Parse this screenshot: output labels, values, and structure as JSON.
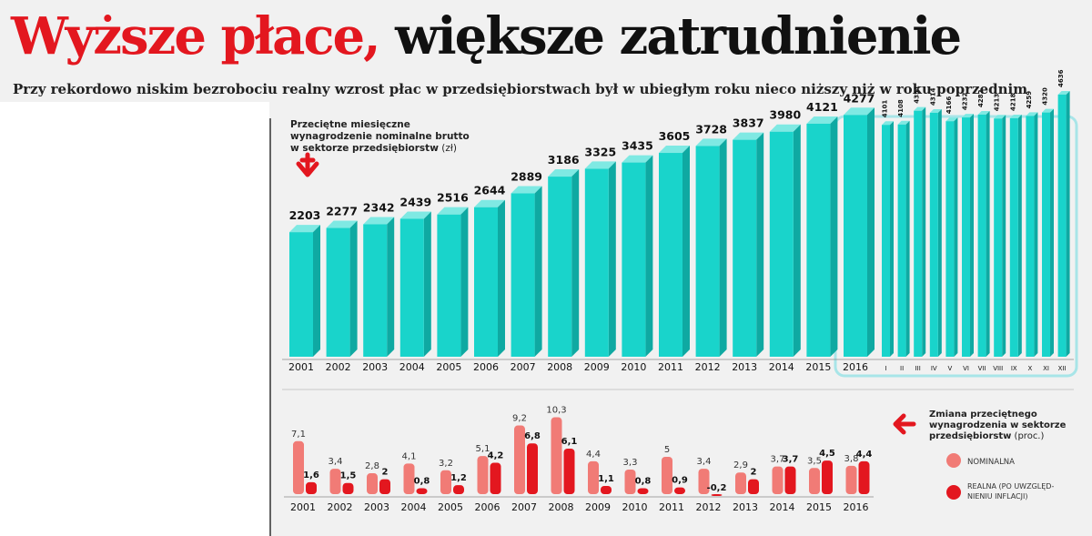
{
  "header": {
    "title_red": "Wyższe płace,",
    "title_black": "większe zatrudnienie",
    "subtitle": "Przy rekordowo niskim bezrobociu realny wzrost płac w przedsiębiorstwach był w ubiegłym roku nieco niższy niż w roku poprzednim"
  },
  "colors": {
    "teal": "#19d4cb",
    "teal_top": "#7fe9e3",
    "teal_side": "#0fa9a2",
    "nominal": "#f17b76",
    "real": "#e3171f",
    "accent": "#e3171f",
    "frame": "#a8e5e8"
  },
  "chart_data": [
    {
      "type": "bar",
      "title_lines": [
        "Przeciętne miesięczne",
        "wynagrodzenie nominalne brutto",
        "w sektorze przedsiębiorstw"
      ],
      "title_unit": "(zł)",
      "categories": [
        "2001",
        "2002",
        "2003",
        "2004",
        "2005",
        "2006",
        "2007",
        "2008",
        "2009",
        "2010",
        "2011",
        "2012",
        "2013",
        "2014",
        "2015",
        "2016"
      ],
      "values": [
        2203,
        2277,
        2342,
        2439,
        2516,
        2644,
        2889,
        3186,
        3325,
        3435,
        3605,
        3728,
        3837,
        3980,
        4121,
        4277
      ],
      "monthly": {
        "categories": [
          "I",
          "II",
          "III",
          "IV",
          "V",
          "VI",
          "VII",
          "VIII",
          "IX",
          "X",
          "XI",
          "XII"
        ],
        "values": [
          4101,
          4108,
          4351,
          4314,
          4166,
          4232,
          4282,
          4213,
          4218,
          4259,
          4320,
          4636
        ]
      },
      "ylim": [
        0,
        4700
      ]
    },
    {
      "type": "bar",
      "title_lines": [
        "Zmiana przeciętnego",
        "wynagrodzenia w sektorze",
        "przedsiębiorstw"
      ],
      "title_unit": "(proc.)",
      "categories": [
        "2001",
        "2002",
        "2003",
        "2004",
        "2005",
        "2006",
        "2007",
        "2008",
        "2009",
        "2010",
        "2011",
        "2012",
        "2013",
        "2014",
        "2015",
        "2016"
      ],
      "series": [
        {
          "name": "NOMINALNA",
          "values": [
            7.1,
            3.4,
            2.8,
            4.1,
            3.2,
            5.1,
            9.2,
            10.3,
            4.4,
            3.3,
            5,
            3.4,
            2.9,
            3.7,
            3.5,
            3.8
          ],
          "labels": [
            "7,1",
            "3,4",
            "2,8",
            "4,1",
            "3,2",
            "5,1",
            "9,2",
            "10,3",
            "4,4",
            "3,3",
            "5",
            "3,4",
            "2,9",
            "3,7",
            "3,5",
            "3,8"
          ]
        },
        {
          "name_lines": [
            "REALNA (PO UWZGLĘD-",
            "NIENIU INFLACJI)"
          ],
          "values": [
            1.6,
            1.5,
            2,
            0.8,
            1.2,
            4.2,
            6.8,
            6.1,
            1.1,
            0.8,
            0.9,
            -0.2,
            2,
            3.7,
            4.5,
            4.4
          ],
          "labels": [
            "1,6",
            "1,5",
            "2",
            "0,8",
            "1,2",
            "4,2",
            "6,8",
            "6,1",
            "1,1",
            "0,8",
            "0,9",
            "-0,2",
            "2",
            "3,7",
            "4,5",
            "4,4"
          ]
        }
      ],
      "ylim": [
        -0.5,
        11
      ]
    }
  ]
}
